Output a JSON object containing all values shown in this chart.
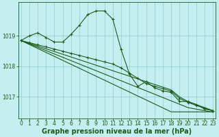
{
  "xlabel": "Graphe pression niveau de la mer (hPa)",
  "background_color": "#c5eef0",
  "grid_color": "#89cece",
  "line_color": "#1a5c1a",
  "x_ticks": [
    0,
    1,
    2,
    3,
    4,
    5,
    6,
    7,
    8,
    9,
    10,
    11,
    12,
    13,
    14,
    15,
    16,
    17,
    18,
    19,
    20,
    21,
    22,
    23
  ],
  "y_ticks": [
    1017,
    1018,
    1019
  ],
  "ylim": [
    1016.3,
    1020.1
  ],
  "xlim": [
    -0.3,
    23.3
  ],
  "lines": [
    {
      "x": [
        0,
        1,
        2,
        3,
        4,
        5,
        6,
        7,
        8,
        9,
        10,
        11,
        12,
        13,
        14,
        15,
        16,
        17,
        18,
        19,
        20,
        21,
        22,
        23
      ],
      "y": [
        1018.85,
        1019.0,
        1019.1,
        1018.95,
        1018.8,
        1018.8,
        1019.05,
        1019.35,
        1019.7,
        1019.82,
        1019.82,
        1019.55,
        1018.55,
        1017.75,
        1017.35,
        1017.5,
        1017.3,
        1017.2,
        1017.15,
        1016.85,
        1016.85,
        1016.75,
        1016.6,
        1016.55
      ],
      "marker": true
    },
    {
      "x": [
        0,
        1,
        2,
        3,
        4,
        5,
        6,
        7,
        8,
        9,
        10,
        11,
        12,
        13,
        14,
        15,
        16,
        17,
        18,
        19,
        20,
        21,
        22,
        23
      ],
      "y": [
        1018.85,
        1018.72,
        1018.59,
        1018.46,
        1018.33,
        1018.2,
        1018.07,
        1017.94,
        1017.81,
        1017.68,
        1017.55,
        1017.42,
        1017.29,
        1017.16,
        1017.03,
        1016.9,
        1016.77,
        1016.64,
        1016.51,
        1016.51,
        1016.51,
        1016.51,
        1016.51,
        1016.51
      ],
      "marker": false
    },
    {
      "x": [
        0,
        1,
        2,
        3,
        4,
        5,
        6,
        7,
        8,
        9,
        10,
        11,
        12,
        13,
        14,
        15,
        16,
        17,
        18,
        19,
        20,
        21,
        22,
        23
      ],
      "y": [
        1018.85,
        1018.74,
        1018.63,
        1018.52,
        1018.41,
        1018.3,
        1018.19,
        1018.08,
        1017.97,
        1017.86,
        1017.75,
        1017.64,
        1017.53,
        1017.42,
        1017.31,
        1017.2,
        1017.09,
        1016.98,
        1016.87,
        1016.76,
        1016.65,
        1016.6,
        1016.55,
        1016.5
      ],
      "marker": false
    },
    {
      "x": [
        0,
        1,
        2,
        3,
        4,
        5,
        6,
        7,
        8,
        9,
        10,
        11,
        12,
        13,
        14,
        15,
        16,
        17,
        18,
        19,
        20,
        21,
        22,
        23
      ],
      "y": [
        1018.85,
        1018.76,
        1018.67,
        1018.58,
        1018.49,
        1018.4,
        1018.31,
        1018.22,
        1018.13,
        1018.04,
        1017.95,
        1017.86,
        1017.77,
        1017.68,
        1017.59,
        1017.5,
        1017.41,
        1017.32,
        1017.23,
        1017.0,
        1016.85,
        1016.75,
        1016.65,
        1016.55
      ],
      "marker": false
    },
    {
      "x": [
        0,
        1,
        2,
        3,
        4,
        5,
        6,
        7,
        8,
        9,
        10,
        11,
        12,
        13,
        14,
        15,
        16,
        17,
        18,
        19,
        20,
        21,
        22,
        23
      ],
      "y": [
        1018.85,
        1018.78,
        1018.71,
        1018.64,
        1018.57,
        1018.5,
        1018.43,
        1018.36,
        1018.29,
        1018.22,
        1018.15,
        1018.08,
        1017.95,
        1017.78,
        1017.61,
        1017.44,
        1017.35,
        1017.27,
        1017.19,
        1016.95,
        1016.82,
        1016.72,
        1016.63,
        1016.54
      ],
      "marker": true
    }
  ],
  "tick_fontsize": 5.5,
  "label_fontsize": 7.0
}
